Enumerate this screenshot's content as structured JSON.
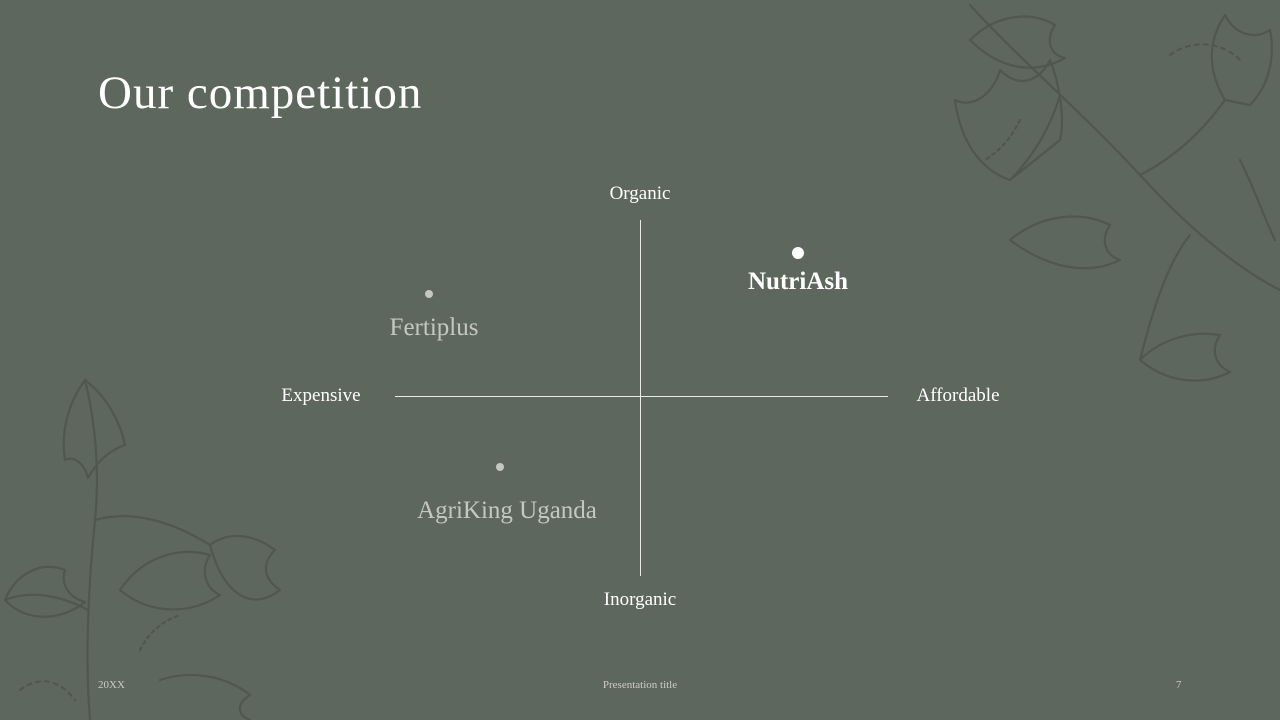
{
  "slide": {
    "title": "Our competition",
    "background_color": "#5e675e",
    "decoration_icon": "ginkgo-leaf-icon"
  },
  "chart_data": {
    "type": "scatter",
    "axes": {
      "y_positive": "Organic",
      "y_negative": "Inorganic",
      "x_negative": "Expensive",
      "x_positive": "Affordable"
    },
    "points": [
      {
        "label": "Fertiplus",
        "x": -0.85,
        "y": 0.57,
        "highlight": false,
        "color": "#c4c8c1"
      },
      {
        "label": "NutriAsh",
        "x": 0.65,
        "y": 0.8,
        "highlight": true,
        "color": "#ffffff"
      },
      {
        "label": "AgriKing Uganda",
        "x": -0.57,
        "y": -0.4,
        "highlight": false,
        "color": "#c4c8c1"
      }
    ]
  },
  "footer": {
    "date": "20XX",
    "presentation_title": "Presentation title",
    "page_number": "7"
  }
}
